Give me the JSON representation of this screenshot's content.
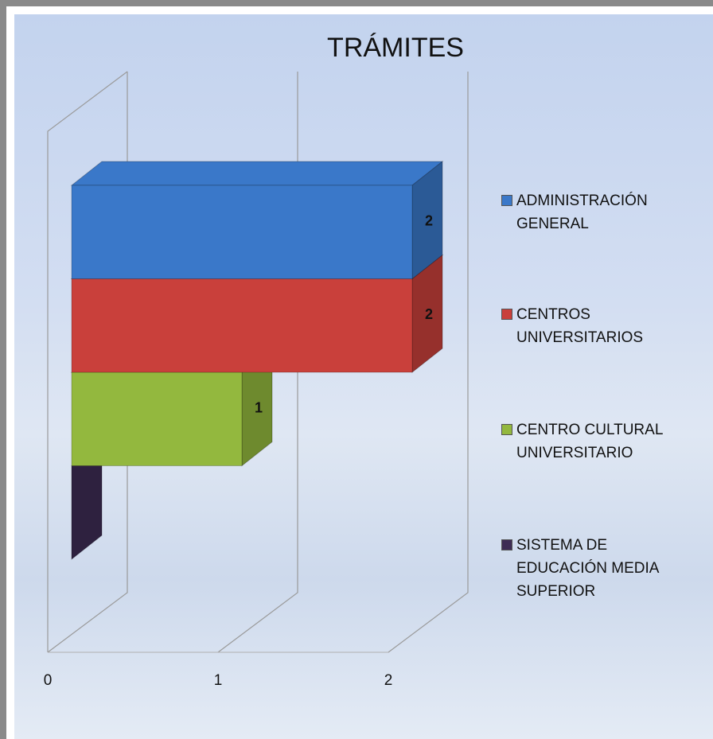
{
  "chart_data": {
    "type": "bar3d",
    "orientation": "horizontal",
    "title": "TRÁMITES",
    "categories": [
      "ADMINISTRACIÓN GENERAL",
      "CENTROS UNIVERSITARIOS",
      "CENTRO CULTURAL UNIVERSITARIO",
      "SISTEMA DE EDUCACIÓN MEDIA SUPERIOR"
    ],
    "values": [
      2,
      2,
      1,
      0
    ],
    "colors": [
      "#3a78c9",
      "#c9403b",
      "#93b83e",
      "#3e2c55"
    ],
    "xlim": [
      0,
      2
    ],
    "xticks": [
      0,
      1,
      2
    ],
    "grid": true,
    "legend": "right"
  }
}
